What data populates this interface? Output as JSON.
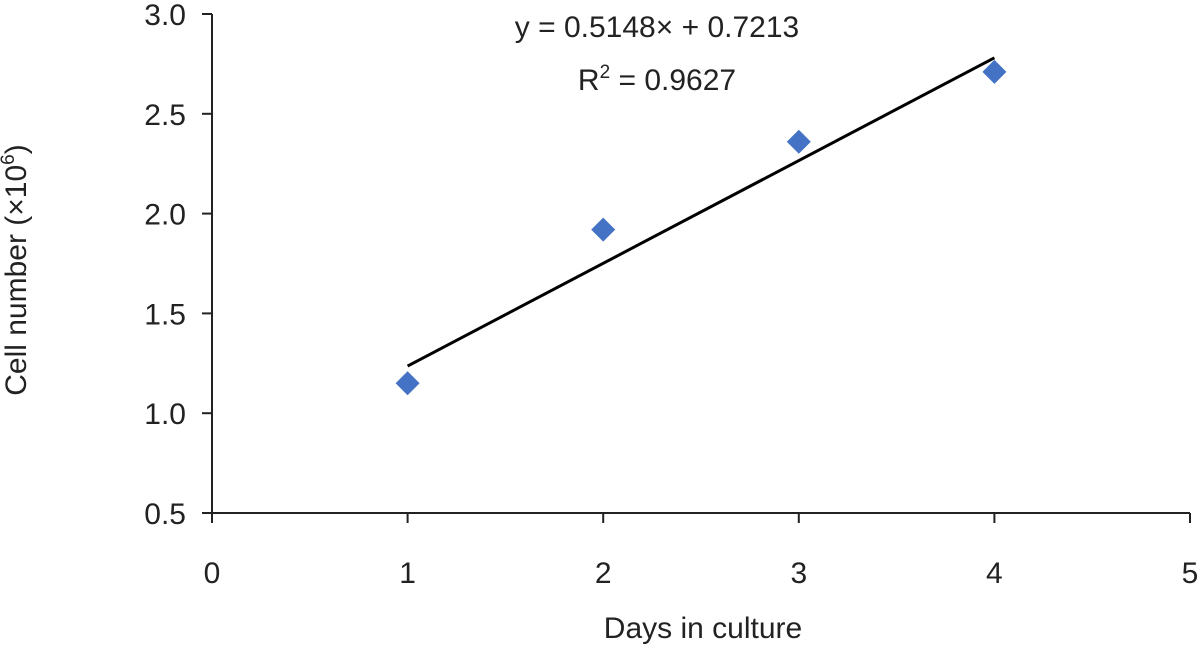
{
  "chart_data": {
    "type": "scatter",
    "xlabel": "Days in culture",
    "ylabel_main": "Cell number (×10",
    "ylabel_sup": "6",
    "ylabel_close": ")",
    "xlim": [
      0,
      5
    ],
    "ylim": [
      0.5,
      3.0
    ],
    "xticks": [
      0,
      1,
      2,
      3,
      4,
      5
    ],
    "yticks": [
      0.5,
      1.0,
      1.5,
      2.0,
      2.5,
      3.0
    ],
    "ytick_labels": [
      "0.5",
      "1.0",
      "1.5",
      "2.0",
      "2.5",
      "3.0"
    ],
    "xtick_labels": [
      "0",
      "1",
      "2",
      "3",
      "4",
      "5"
    ],
    "grid": false,
    "series": [
      {
        "x": [
          1,
          2,
          3,
          4
        ],
        "y": [
          1.15,
          1.92,
          2.36,
          2.71
        ],
        "color": "#4472c4",
        "marker": "diamond"
      }
    ],
    "trendline": {
      "slope": 0.5148,
      "intercept": 0.7213,
      "x_range": [
        1,
        4
      ],
      "color": "#000000"
    },
    "annotations": {
      "equation": "y = 0.5148× + 0.7213",
      "r2_prefix": "R",
      "r2_sup": "2",
      "r2_value": " = 0.9627"
    }
  }
}
